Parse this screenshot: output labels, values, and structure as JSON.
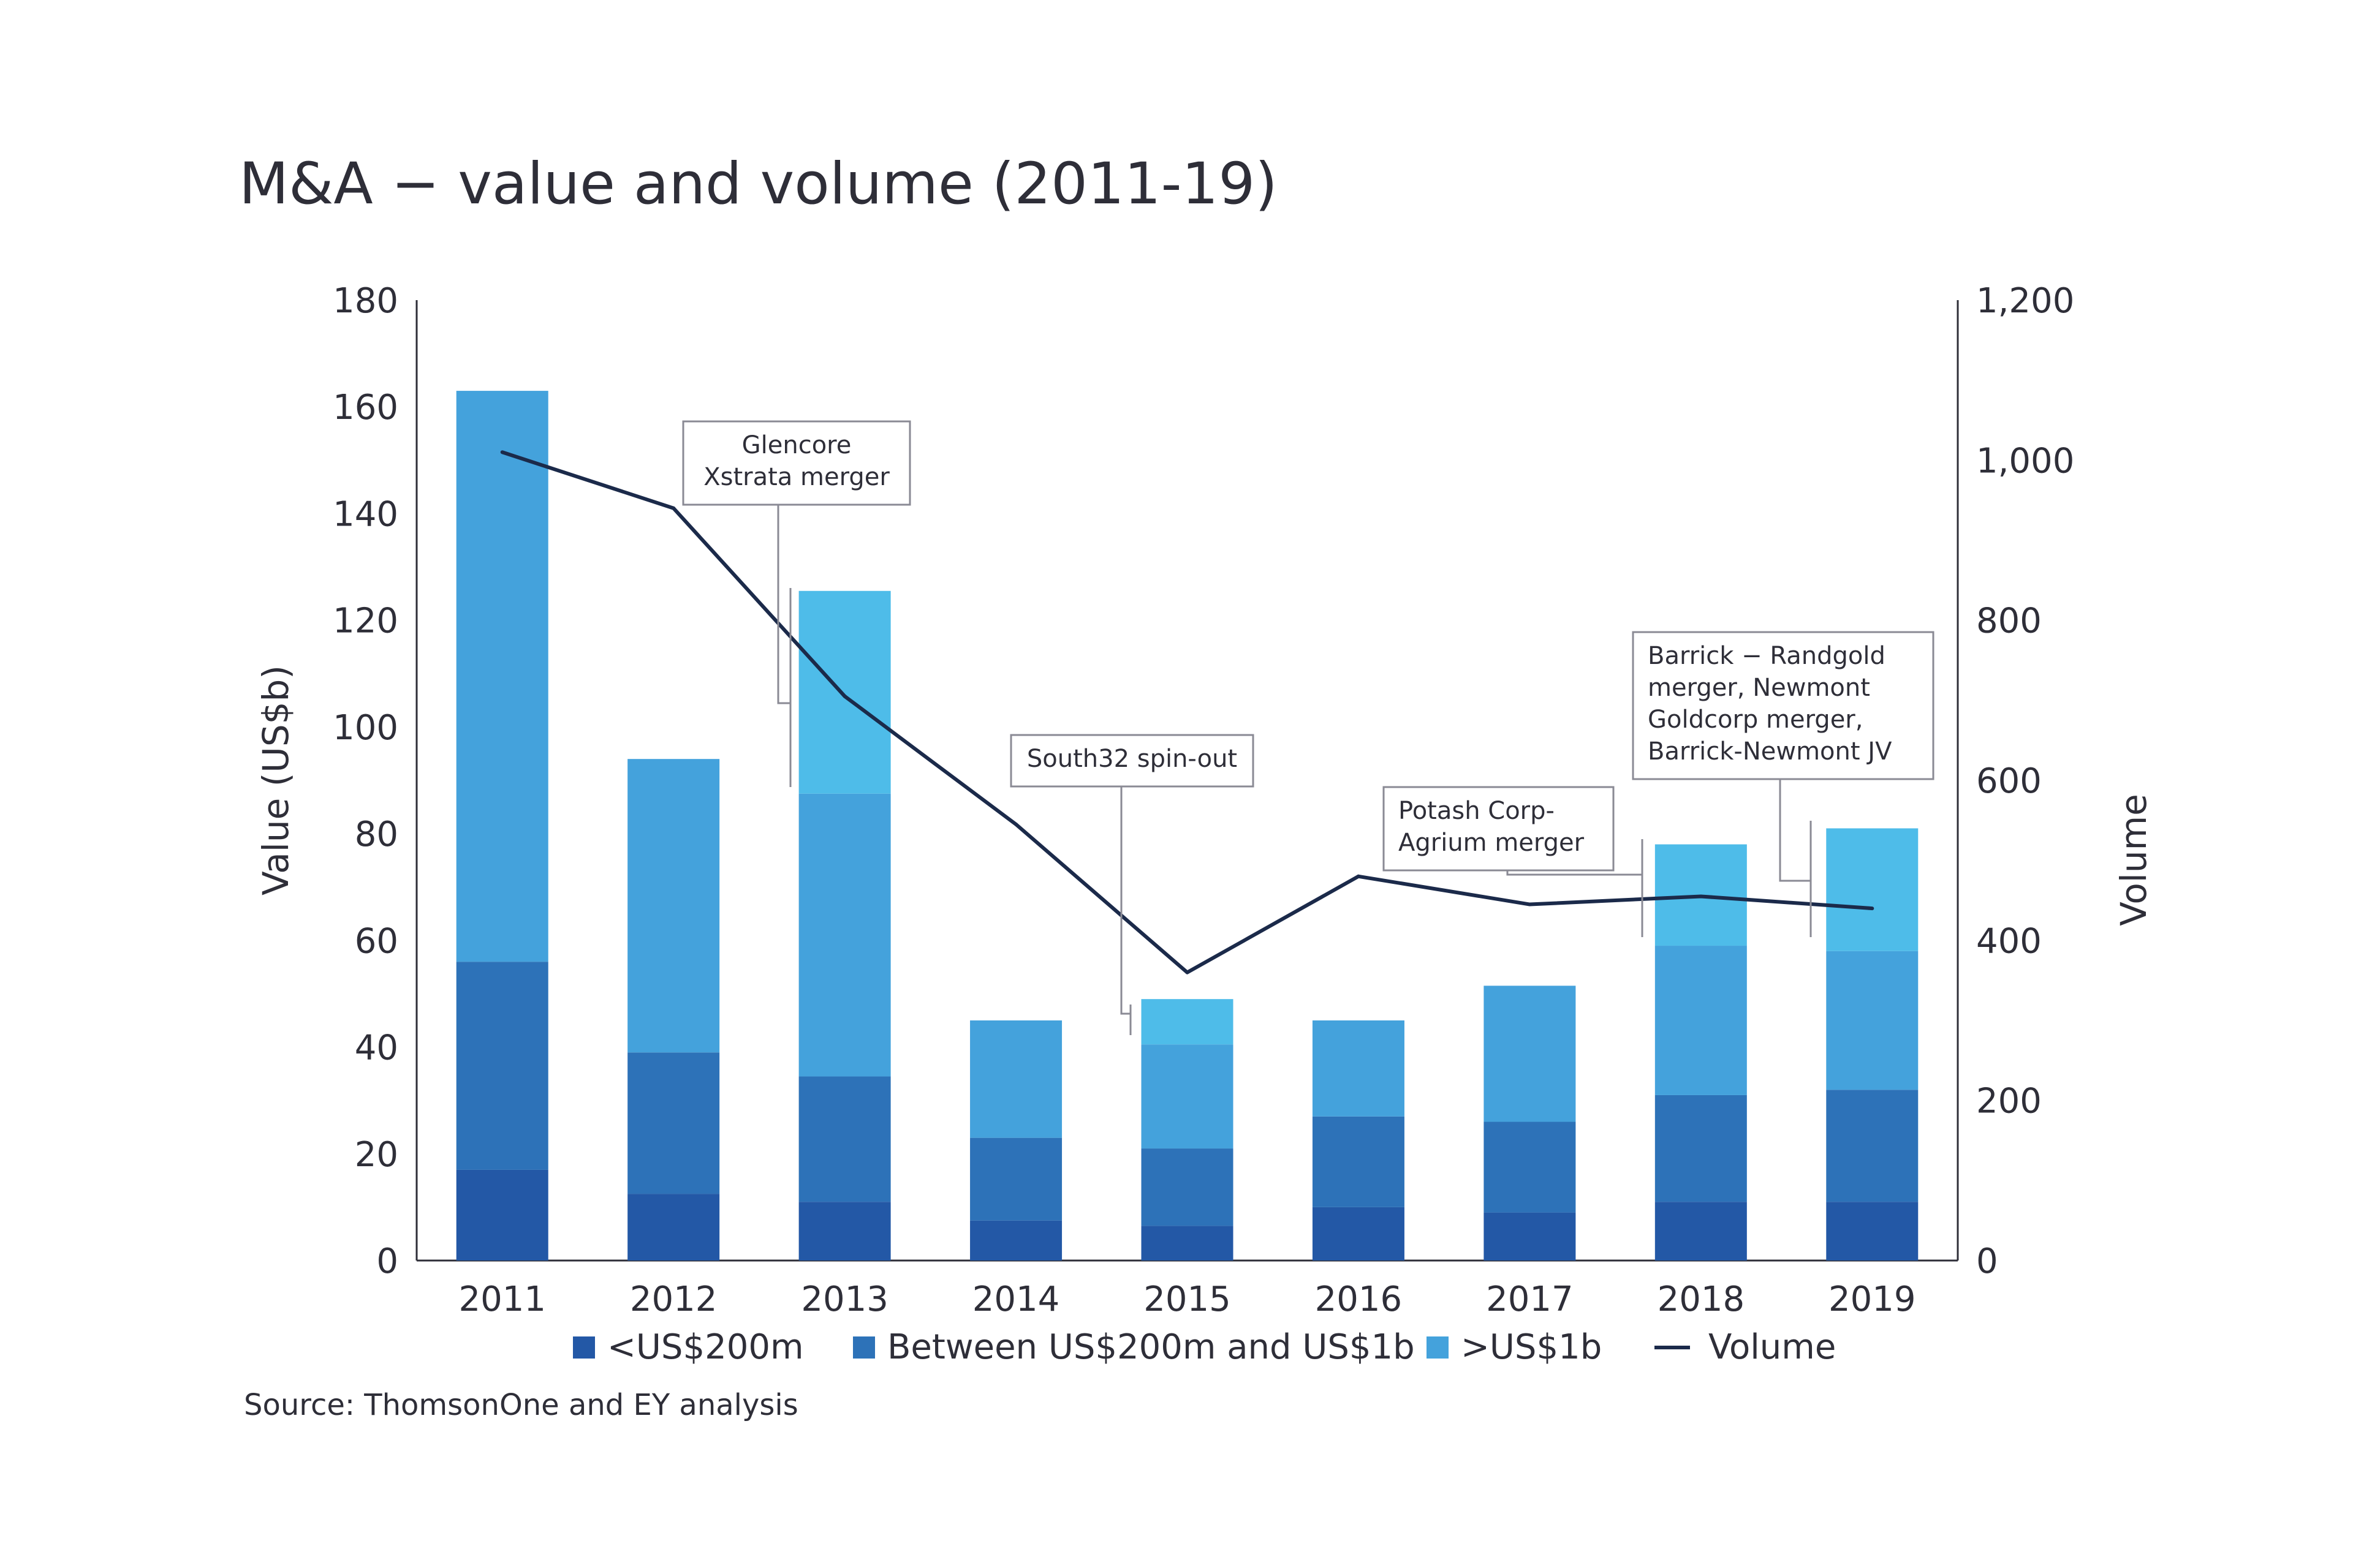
{
  "chart_data": {
    "type": "bar",
    "stacked": true,
    "title": "M&A − value and volume (2011-19)",
    "categories": [
      "2011",
      "2012",
      "2013",
      "2014",
      "2015",
      "2016",
      "2017",
      "2018",
      "2019"
    ],
    "series": [
      {
        "name": "<US$200m",
        "color": "#2358a6",
        "values": [
          17,
          12.5,
          11,
          7.5,
          6.5,
          10,
          9,
          11,
          11
        ]
      },
      {
        "name": "Between US$200m and US$1b",
        "color": "#2d72b8",
        "values": [
          39,
          26.5,
          23.5,
          15.5,
          14.5,
          17,
          17,
          20,
          21
        ]
      },
      {
        "name": ">US$1b",
        "color": "#44a2dc",
        "values": [
          107,
          55,
          53,
          22,
          19.5,
          18,
          25.5,
          28,
          26
        ]
      },
      {
        "name": ">US$1b (deal highlight)",
        "color": "#4ebce9",
        "legend": false,
        "values": [
          0,
          0,
          38,
          0,
          8.5,
          0,
          0,
          19,
          23
        ]
      }
    ],
    "line": {
      "name": "Volume",
      "color": "#1b2a4a",
      "axis": "right",
      "values": [
        1010,
        940,
        705,
        545,
        360,
        480,
        445,
        455,
        440
      ]
    },
    "ylabel": "Value (US$b)",
    "ylabel_right": "Volume",
    "ylim": [
      0,
      180
    ],
    "ylim_right": [
      0,
      1200
    ],
    "yticks": [
      "0",
      "20",
      "40",
      "60",
      "80",
      "100",
      "120",
      "140",
      "160",
      "180"
    ],
    "yticks_right": [
      "0",
      "200",
      "400",
      "600",
      "800",
      "1,000",
      "1,200"
    ],
    "legend_items": [
      "<US$200m",
      "Between US$200m and US$1b",
      ">US$1b",
      "Volume"
    ],
    "legend": "bottom",
    "annotations": [
      {
        "year": "2013",
        "lines": [
          "Glencore",
          "Xstrata merger"
        ]
      },
      {
        "year": "2015",
        "lines": [
          "South32 spin-out"
        ]
      },
      {
        "year": "2018",
        "lines": [
          "Potash Corp-",
          "Agrium merger"
        ]
      },
      {
        "year": "2019",
        "lines": [
          "Barrick − Randgold",
          "merger, Newmont",
          "Goldcorp merger,",
          "Barrick-Newmont JV"
        ]
      }
    ],
    "source": "Source: ThomsonOne and EY analysis"
  }
}
